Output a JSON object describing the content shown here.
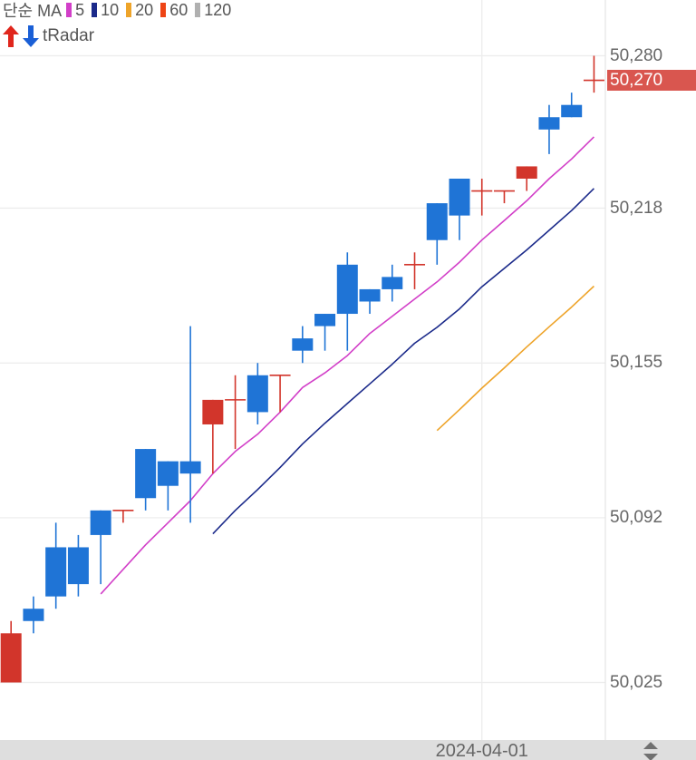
{
  "legend": {
    "ma_label": "단순 MA",
    "ma_items": [
      {
        "period": "5",
        "color": "#d23fc8"
      },
      {
        "period": "10",
        "color": "#1b2a8a"
      },
      {
        "period": "20",
        "color": "#eea42a"
      },
      {
        "period": "60",
        "color": "#ee4415"
      },
      {
        "period": "120",
        "color": "#b0b0b0"
      }
    ],
    "indicator": {
      "label": "tRadar",
      "up_icon": "red-up-arrow-icon",
      "down_icon": "blue-down-arrow-icon",
      "up_color": "#e0261c",
      "down_color": "#1a5fd6"
    }
  },
  "y_axis": {
    "ticks": [
      {
        "label": "50,280",
        "value": 50280
      },
      {
        "label": "50,218",
        "value": 50218
      },
      {
        "label": "50,155",
        "value": 50155
      },
      {
        "label": "50,092",
        "value": 50092
      },
      {
        "label": "50,025",
        "value": 50025
      }
    ],
    "current_price": {
      "label": "50,270",
      "value": 50270,
      "color": "#d9564f"
    }
  },
  "x_axis": {
    "labels": [
      {
        "text": "2024-04-01",
        "index": 21
      }
    ]
  },
  "scroll_icon": "up-down-scroll-icon",
  "colors": {
    "up_candle": "#d2352b",
    "down_candle": "#1f74d6",
    "grid": "#ececec",
    "axis_separator": "#e4e4e4"
  },
  "chart_data": {
    "type": "candlestick",
    "title": "",
    "xlabel": "",
    "ylabel": "",
    "ylim": [
      50025,
      50280
    ],
    "y_ticks": [
      50280,
      50218,
      50155,
      50092,
      50025
    ],
    "grid": true,
    "legend_position": "top-left",
    "x_tick_labels": [
      {
        "index": 21,
        "label": "2024-04-01"
      }
    ],
    "candle_fields": [
      "open",
      "high",
      "low",
      "close",
      "direction"
    ],
    "candles": [
      [
        50025,
        50050,
        50025,
        50045,
        "up"
      ],
      [
        50055,
        50060,
        50045,
        50050,
        "down"
      ],
      [
        50080,
        50090,
        50055,
        50060,
        "down"
      ],
      [
        50080,
        50085,
        50060,
        50065,
        "down"
      ],
      [
        50095,
        50095,
        50065,
        50085,
        "down"
      ],
      [
        50095,
        50095,
        50090,
        50095,
        "up"
      ],
      [
        50120,
        50120,
        50095,
        50100,
        "down"
      ],
      [
        50115,
        50115,
        50095,
        50105,
        "down"
      ],
      [
        50115,
        50170,
        50090,
        50110,
        "down"
      ],
      [
        50130,
        50140,
        50110,
        50140,
        "up"
      ],
      [
        50140,
        50150,
        50120,
        50140,
        "up"
      ],
      [
        50150,
        50155,
        50130,
        50135,
        "down"
      ],
      [
        50150,
        50150,
        50135,
        50150,
        "up"
      ],
      [
        50165,
        50170,
        50155,
        50160,
        "down"
      ],
      [
        50175,
        50175,
        50160,
        50170,
        "down"
      ],
      [
        50195,
        50200,
        50160,
        50175,
        "down"
      ],
      [
        50185,
        50185,
        50175,
        50180,
        "down"
      ],
      [
        50190,
        50195,
        50180,
        50185,
        "down"
      ],
      [
        50195,
        50200,
        50185,
        50195,
        "up"
      ],
      [
        50220,
        50220,
        50195,
        50205,
        "down"
      ],
      [
        50230,
        50230,
        50205,
        50215,
        "down"
      ],
      [
        50225,
        50230,
        50215,
        50225,
        "up"
      ],
      [
        50225,
        50225,
        50220,
        50225,
        "up"
      ],
      [
        50230,
        50235,
        50225,
        50235,
        "up"
      ],
      [
        50255,
        50260,
        50240,
        50250,
        "down"
      ],
      [
        50260,
        50265,
        50255,
        50255,
        "down"
      ],
      [
        50270,
        50280,
        50265,
        50270,
        "up"
      ]
    ],
    "series": [
      {
        "name": "MA5",
        "type": "line",
        "color": "#d23fc8",
        "start_index": 4,
        "values": [
          50061,
          50071,
          50081,
          50090,
          50099,
          50110,
          50119,
          50126,
          50135,
          50145,
          50151,
          50158,
          50167,
          50174,
          50181,
          50188,
          50196,
          50205,
          50213,
          50221,
          50230,
          50238,
          50247
        ]
      },
      {
        "name": "MA10",
        "type": "line",
        "color": "#1b2a8a",
        "start_index": 9,
        "values": [
          50085.5,
          50095,
          50103.5,
          50112.5,
          50122,
          50130.5,
          50138.5,
          50146.5,
          50154.5,
          50163,
          50169.5,
          50177,
          50186,
          50193.5,
          50201,
          50209,
          50217,
          50226
        ]
      },
      {
        "name": "MA20",
        "type": "line",
        "color": "#eea42a",
        "start_index": 19,
        "values": [
          50127.5,
          50136,
          50144.75,
          50153,
          50161.5,
          50169.75,
          50177.75,
          50186.25
        ]
      }
    ],
    "last_price": 50270
  }
}
